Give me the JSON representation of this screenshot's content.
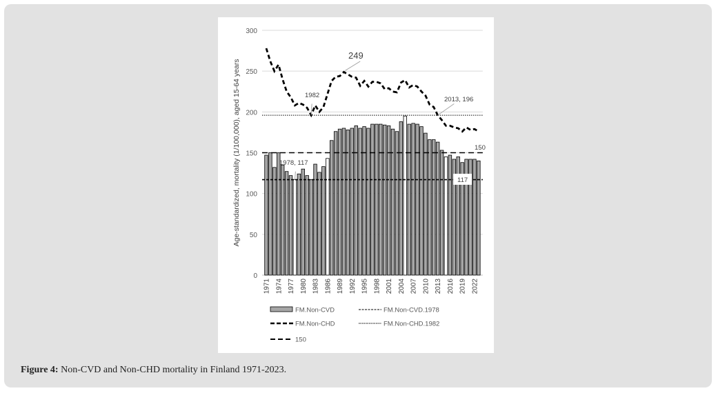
{
  "caption": {
    "label": "Figure 4:",
    "text": " Non-CVD and Non-CHD mortality in Finland 1971-2023."
  },
  "chart_data": {
    "type": "bar",
    "title": "",
    "xlabel": "",
    "ylabel": "Age-standardized, mortality (1/100,000), aged 15-64 years",
    "ylim": [
      0,
      300
    ],
    "yticks": [
      "0",
      "50",
      "100",
      "150",
      "200",
      "250",
      "300"
    ],
    "xtick_labels": [
      "1971",
      "1974",
      "1977",
      "1980",
      "1983",
      "1986",
      "1989",
      "1992",
      "1995",
      "1998",
      "2001",
      "2004",
      "2007",
      "2010",
      "2013",
      "2016",
      "2019",
      "2022"
    ],
    "x": [
      1971,
      1972,
      1973,
      1974,
      1975,
      1976,
      1977,
      1978,
      1979,
      1980,
      1981,
      1982,
      1983,
      1984,
      1985,
      1986,
      1987,
      1988,
      1989,
      1990,
      1991,
      1992,
      1993,
      1994,
      1995,
      1996,
      1997,
      1998,
      1999,
      2000,
      2001,
      2002,
      2003,
      2004,
      2005,
      2006,
      2007,
      2008,
      2009,
      2010,
      2011,
      2012,
      2013,
      2014,
      2015,
      2016,
      2017,
      2018,
      2019,
      2020,
      2021,
      2022,
      2023
    ],
    "series": [
      {
        "name": "FM.Non-CVD",
        "kind": "bar",
        "color": "#a6a6a6",
        "values": [
          147,
          150,
          132,
          150,
          135,
          127,
          122,
          117,
          124,
          130,
          122,
          117,
          136,
          126,
          133,
          143,
          165,
          176,
          179,
          180,
          178,
          180,
          183,
          180,
          182,
          180,
          185,
          185,
          185,
          184,
          183,
          179,
          176,
          188,
          195,
          185,
          186,
          185,
          182,
          174,
          166,
          166,
          163,
          153,
          145,
          147,
          142,
          145,
          138,
          142,
          142,
          142,
          140
        ],
        "highlighted_years": [
          1978,
          1986,
          2005,
          2015
        ]
      },
      {
        "name": "FM.Non-CHD",
        "kind": "line",
        "values": [
          278,
          262,
          250,
          258,
          240,
          225,
          218,
          208,
          211,
          209,
          205,
          196,
          208,
          200,
          206,
          222,
          238,
          243,
          244,
          249,
          246,
          243,
          242,
          232,
          238,
          231,
          237,
          237,
          235,
          228,
          229,
          225,
          224,
          236,
          239,
          230,
          233,
          231,
          225,
          220,
          209,
          206,
          196,
          190,
          183,
          183,
          181,
          180,
          176,
          181,
          178,
          179,
          176
        ]
      },
      {
        "name": "FM.Non-CVD.1978",
        "kind": "hline",
        "value": 117
      },
      {
        "name": "FM.Non-CHD.1982",
        "kind": "hline",
        "value": 196
      },
      {
        "name": "150",
        "kind": "hline",
        "value": 150
      }
    ],
    "annotations": {
      "peak": "249",
      "chd_1982": "1982",
      "chd_2013": "2013, 196",
      "ref_150": "150",
      "cvd_1978": "1978, 117",
      "ref_117": "117"
    },
    "legend_position": "bottom"
  }
}
